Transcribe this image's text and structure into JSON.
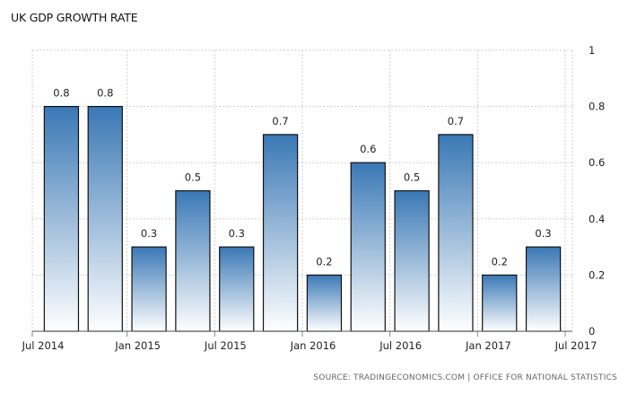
{
  "chart_data": {
    "type": "bar",
    "title": "UK GDP GROWTH RATE",
    "categories": [
      "Q3 2014",
      "Q4 2014",
      "Q1 2015",
      "Q2 2015",
      "Q3 2015",
      "Q4 2015",
      "Q1 2016",
      "Q2 2016",
      "Q3 2016",
      "Q4 2016",
      "Q1 2017",
      "Q2 2017"
    ],
    "values": [
      0.8,
      0.8,
      0.3,
      0.5,
      0.3,
      0.7,
      0.2,
      0.6,
      0.5,
      0.7,
      0.2,
      0.3
    ],
    "data_labels": [
      "0.8",
      "0.8",
      "0.3",
      "0.5",
      "0.3",
      "0.7",
      "0.2",
      "0.6",
      "0.5",
      "0.7",
      "0.2",
      "0.3"
    ],
    "x_tick_labels": [
      "Jul 2014",
      "Jan 2015",
      "Jul 2015",
      "Jan 2016",
      "Jul 2016",
      "Jan 2017",
      "Jul 2017"
    ],
    "y_tick_labels": [
      "0",
      "0.2",
      "0.4",
      "0.6",
      "0.8",
      "1"
    ],
    "ylim": [
      0,
      1
    ],
    "y_axis_position": "right",
    "grid": true,
    "xlabel": "",
    "ylabel": "",
    "bar_color_top": "#3a78b5",
    "bar_color_bottom": "#ffffff",
    "bar_border_color": "#111111",
    "grid_color": "#cfcfcf",
    "source": "SOURCE: TRADINGECONOMICS.COM  |  OFFICE FOR NATIONAL STATISTICS"
  }
}
